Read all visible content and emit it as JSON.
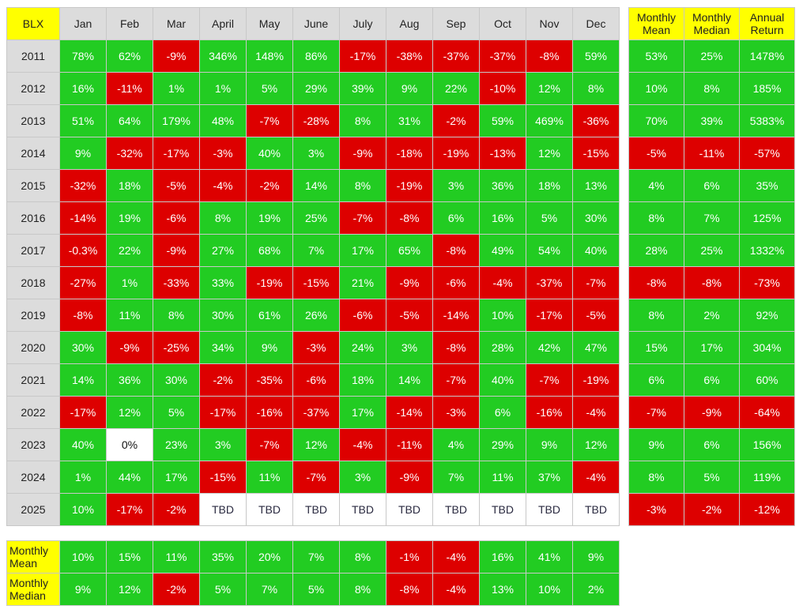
{
  "colors": {
    "positive": "#22cc22",
    "negative": "#dd0000",
    "header": "#dcdcdc",
    "highlight": "#ffff00",
    "neutral": "#ffffff"
  },
  "chart_data": {
    "type": "table",
    "corner_label": "BLX",
    "months": [
      "Jan",
      "Feb",
      "Mar",
      "April",
      "May",
      "June",
      "July",
      "Aug",
      "Sep",
      "Oct",
      "Nov",
      "Dec"
    ],
    "rows": [
      {
        "year": "2011",
        "values": [
          "78%",
          "62%",
          "-9%",
          "346%",
          "148%",
          "86%",
          "-17%",
          "-38%",
          "-37%",
          "-37%",
          "-8%",
          "59%"
        ]
      },
      {
        "year": "2012",
        "values": [
          "16%",
          "-11%",
          "1%",
          "1%",
          "5%",
          "29%",
          "39%",
          "9%",
          "22%",
          "-10%",
          "12%",
          "8%"
        ]
      },
      {
        "year": "2013",
        "values": [
          "51%",
          "64%",
          "179%",
          "48%",
          "-7%",
          "-28%",
          "8%",
          "31%",
          "-2%",
          "59%",
          "469%",
          "-36%"
        ]
      },
      {
        "year": "2014",
        "values": [
          "9%",
          "-32%",
          "-17%",
          "-3%",
          "40%",
          "3%",
          "-9%",
          "-18%",
          "-19%",
          "-13%",
          "12%",
          "-15%"
        ]
      },
      {
        "year": "2015",
        "values": [
          "-32%",
          "18%",
          "-5%",
          "-4%",
          "-2%",
          "14%",
          "8%",
          "-19%",
          "3%",
          "36%",
          "18%",
          "13%"
        ]
      },
      {
        "year": "2016",
        "values": [
          "-14%",
          "19%",
          "-6%",
          "8%",
          "19%",
          "25%",
          "-7%",
          "-8%",
          "6%",
          "16%",
          "5%",
          "30%"
        ]
      },
      {
        "year": "2017",
        "values": [
          "-0.3%",
          "22%",
          "-9%",
          "27%",
          "68%",
          "7%",
          "17%",
          "65%",
          "-8%",
          "49%",
          "54%",
          "40%"
        ]
      },
      {
        "year": "2018",
        "values": [
          "-27%",
          "1%",
          "-33%",
          "33%",
          "-19%",
          "-15%",
          "21%",
          "-9%",
          "-6%",
          "-4%",
          "-37%",
          "-7%"
        ]
      },
      {
        "year": "2019",
        "values": [
          "-8%",
          "11%",
          "8%",
          "30%",
          "61%",
          "26%",
          "-6%",
          "-5%",
          "-14%",
          "10%",
          "-17%",
          "-5%"
        ]
      },
      {
        "year": "2020",
        "values": [
          "30%",
          "-9%",
          "-25%",
          "34%",
          "9%",
          "-3%",
          "24%",
          "3%",
          "-8%",
          "28%",
          "42%",
          "47%"
        ]
      },
      {
        "year": "2021",
        "values": [
          "14%",
          "36%",
          "30%",
          "-2%",
          "-35%",
          "-6%",
          "18%",
          "14%",
          "-7%",
          "40%",
          "-7%",
          "-19%"
        ]
      },
      {
        "year": "2022",
        "values": [
          "-17%",
          "12%",
          "5%",
          "-17%",
          "-16%",
          "-37%",
          "17%",
          "-14%",
          "-3%",
          "6%",
          "-16%",
          "-4%"
        ]
      },
      {
        "year": "2023",
        "values": [
          "40%",
          "0%",
          "23%",
          "3%",
          "-7%",
          "12%",
          "-4%",
          "-11%",
          "4%",
          "29%",
          "9%",
          "12%"
        ]
      },
      {
        "year": "2024",
        "values": [
          "1%",
          "44%",
          "17%",
          "-15%",
          "11%",
          "-7%",
          "3%",
          "-9%",
          "7%",
          "11%",
          "37%",
          "-4%"
        ]
      },
      {
        "year": "2025",
        "values": [
          "10%",
          "-17%",
          "-2%",
          "TBD",
          "TBD",
          "TBD",
          "TBD",
          "TBD",
          "TBD",
          "TBD",
          "TBD",
          "TBD"
        ]
      }
    ],
    "summary_headers": [
      [
        "Monthly",
        "Mean"
      ],
      [
        "Monthly",
        "Median"
      ],
      [
        "Annual",
        "Return"
      ]
    ],
    "summary_rows": [
      [
        "53%",
        "25%",
        "1478%"
      ],
      [
        "10%",
        "8%",
        "185%"
      ],
      [
        "70%",
        "39%",
        "5383%"
      ],
      [
        "-5%",
        "-11%",
        "-57%"
      ],
      [
        "4%",
        "6%",
        "35%"
      ],
      [
        "8%",
        "7%",
        "125%"
      ],
      [
        "28%",
        "25%",
        "1332%"
      ],
      [
        "-8%",
        "-8%",
        "-73%"
      ],
      [
        "8%",
        "2%",
        "92%"
      ],
      [
        "15%",
        "17%",
        "304%"
      ],
      [
        "6%",
        "6%",
        "60%"
      ],
      [
        "-7%",
        "-9%",
        "-64%"
      ],
      [
        "9%",
        "6%",
        "156%"
      ],
      [
        "8%",
        "5%",
        "119%"
      ],
      [
        "-3%",
        "-2%",
        "-12%"
      ]
    ],
    "bottom_rows": [
      {
        "label": [
          "Monthly",
          "Mean"
        ],
        "values": [
          "10%",
          "15%",
          "11%",
          "35%",
          "20%",
          "7%",
          "8%",
          "-1%",
          "-4%",
          "16%",
          "41%",
          "9%"
        ]
      },
      {
        "label": [
          "Monthly",
          "Median"
        ],
        "values": [
          "9%",
          "12%",
          "-2%",
          "5%",
          "7%",
          "5%",
          "8%",
          "-8%",
          "-4%",
          "13%",
          "10%",
          "2%"
        ]
      }
    ]
  }
}
